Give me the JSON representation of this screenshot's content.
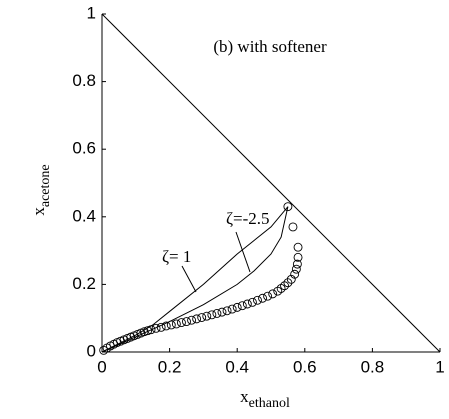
{
  "chart_data": {
    "type": "scatter-line",
    "title": "(b) with softener",
    "xlabel": "x",
    "xlabel_sub": "ethanol",
    "ylabel": "x",
    "ylabel_sub": "acetone",
    "xlim": [
      0,
      1
    ],
    "ylim": [
      0,
      1
    ],
    "xticks": [
      0,
      0.2,
      0.4,
      0.6,
      0.8,
      1
    ],
    "yticks": [
      0,
      0.2,
      0.4,
      0.6,
      0.8,
      1
    ],
    "boundary": {
      "x": [
        0,
        1
      ],
      "y": [
        1,
        0
      ],
      "color": "#000000"
    },
    "series": [
      {
        "name": "ζ= 1",
        "kind": "line",
        "color": "#000000",
        "x": [
          0,
          0.1,
          0.15,
          0.2,
          0.3,
          0.4,
          0.5,
          0.55
        ],
        "y": [
          0,
          0.05,
          0.08,
          0.12,
          0.2,
          0.29,
          0.37,
          0.43
        ]
      },
      {
        "name": "ζ=-2.5",
        "kind": "line",
        "color": "#000000",
        "x": [
          0,
          0.1,
          0.2,
          0.3,
          0.4,
          0.45,
          0.5,
          0.53,
          0.55
        ],
        "y": [
          0,
          0.045,
          0.09,
          0.14,
          0.2,
          0.24,
          0.29,
          0.34,
          0.43
        ]
      },
      {
        "kind": "markers",
        "color": "#000000",
        "x": [
          0.005,
          0.015,
          0.025,
          0.035,
          0.045,
          0.055,
          0.065,
          0.075,
          0.085,
          0.095,
          0.105,
          0.115,
          0.125,
          0.135,
          0.145,
          0.16,
          0.175,
          0.19,
          0.205,
          0.22,
          0.235,
          0.25,
          0.265,
          0.28,
          0.295,
          0.31,
          0.325,
          0.34,
          0.355,
          0.37,
          0.385,
          0.4,
          0.415,
          0.43,
          0.445,
          0.46,
          0.475,
          0.49,
          0.505,
          0.52,
          0.53,
          0.54,
          0.55,
          0.56,
          0.57,
          0.575,
          0.578,
          0.58,
          0.58,
          0.565,
          0.55
        ],
        "y": [
          0.005,
          0.012,
          0.018,
          0.023,
          0.028,
          0.032,
          0.036,
          0.04,
          0.044,
          0.048,
          0.052,
          0.056,
          0.06,
          0.063,
          0.066,
          0.07,
          0.073,
          0.077,
          0.08,
          0.083,
          0.087,
          0.09,
          0.094,
          0.098,
          0.102,
          0.106,
          0.11,
          0.114,
          0.118,
          0.122,
          0.127,
          0.132,
          0.137,
          0.142,
          0.147,
          0.153,
          0.159,
          0.165,
          0.172,
          0.18,
          0.188,
          0.196,
          0.205,
          0.215,
          0.23,
          0.245,
          0.26,
          0.28,
          0.31,
          0.37,
          0.43
        ]
      }
    ]
  }
}
